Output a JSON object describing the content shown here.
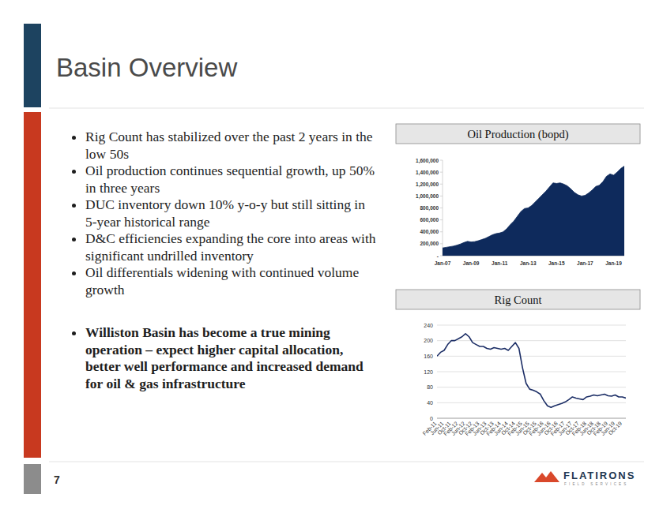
{
  "slide": {
    "title": "Basin Overview",
    "bullets": [
      "Rig Count has stabilized over the past 2 years in the low 50s",
      "Oil production continues sequential growth, up 50% in three years",
      "DUC inventory down 10% y-o-y but still sitting in 5-year historical range",
      "D&C efficiencies expanding the core into areas with significant undrilled inventory",
      "Oil differentials widening with continued volume growth"
    ],
    "conclusion": "Williston Basin has become a true mining operation – expect higher capital allocation, better well performance and increased demand for oil & gas infrastructure",
    "page_number": "7",
    "logo": {
      "name": "FLATIRONS",
      "tagline": "FIELD SERVICES"
    }
  },
  "chart_data": [
    {
      "type": "area",
      "title": "Oil Production (bopd)",
      "categories": [
        "Jan-07",
        null,
        null,
        null,
        null,
        null,
        null,
        null,
        "Jan-09",
        null,
        null,
        null,
        null,
        null,
        null,
        null,
        "Jan-11",
        null,
        null,
        null,
        null,
        null,
        null,
        null,
        "Jan-13",
        null,
        null,
        null,
        null,
        null,
        null,
        null,
        "Jan-15",
        null,
        null,
        null,
        null,
        null,
        null,
        null,
        "Jan-17",
        null,
        null,
        null,
        null,
        null,
        null,
        null,
        "Jan-19",
        null,
        null,
        null
      ],
      "values": [
        130000,
        140000,
        150000,
        160000,
        175000,
        195000,
        220000,
        240000,
        230000,
        235000,
        250000,
        270000,
        290000,
        320000,
        350000,
        370000,
        380000,
        400000,
        450000,
        520000,
        580000,
        660000,
        740000,
        790000,
        800000,
        840000,
        900000,
        960000,
        1020000,
        1080000,
        1150000,
        1220000,
        1210000,
        1220000,
        1200000,
        1170000,
        1120000,
        1060000,
        1020000,
        1000000,
        1010000,
        1050000,
        1100000,
        1160000,
        1180000,
        1240000,
        1330000,
        1370000,
        1350000,
        1400000,
        1460000,
        1500000
      ],
      "color": "#0e2a5c",
      "ylim": [
        0,
        1600000
      ],
      "yticks": [
        {
          "value": 0,
          "label": "-"
        },
        {
          "value": 200000,
          "label": "200,000"
        },
        {
          "value": 400000,
          "label": "400,000"
        },
        {
          "value": 600000,
          "label": "600,000"
        },
        {
          "value": 800000,
          "label": "800,000"
        },
        {
          "value": 1000000,
          "label": "1,000,000"
        },
        {
          "value": 1200000,
          "label": "1,200,000"
        },
        {
          "value": 1400000,
          "label": "1,400,000"
        },
        {
          "value": 1600000,
          "label": "1,600,000"
        }
      ],
      "grid": false
    },
    {
      "type": "line",
      "title": "Rig Count",
      "categories": [
        "Feb-11",
        null,
        "Jun-11",
        null,
        "Oct-11",
        null,
        "Feb-12",
        null,
        "Jun-12",
        null,
        "Oct-12",
        null,
        "Feb-13",
        null,
        "Jun-13",
        null,
        "Oct-13",
        null,
        "Feb-14",
        null,
        "Jun-14",
        null,
        "Oct-14",
        null,
        "Feb-15",
        null,
        "Jun-15",
        null,
        "Oct-15",
        null,
        "Feb-16",
        null,
        "Jun-16",
        null,
        "Oct-16",
        null,
        "Feb-17",
        null,
        "Jun-17",
        null,
        "Oct-17",
        null,
        "Feb-18",
        null,
        "Jun-18",
        null,
        "Oct-18",
        null,
        "Feb-19",
        null,
        "Jun-19",
        null,
        "Oct-19",
        null
      ],
      "values": [
        160,
        170,
        175,
        190,
        200,
        200,
        205,
        210,
        218,
        210,
        195,
        190,
        185,
        185,
        180,
        178,
        182,
        180,
        178,
        180,
        175,
        185,
        195,
        180,
        130,
        90,
        75,
        72,
        68,
        62,
        45,
        32,
        28,
        32,
        35,
        38,
        42,
        48,
        55,
        52,
        50,
        48,
        55,
        57,
        60,
        58,
        60,
        62,
        58,
        57,
        60,
        55,
        55,
        52
      ],
      "color": "#1c2e66",
      "ylim": [
        0,
        240
      ],
      "yticks": [
        0,
        40,
        80,
        120,
        160,
        200,
        240
      ],
      "grid": true
    }
  ]
}
